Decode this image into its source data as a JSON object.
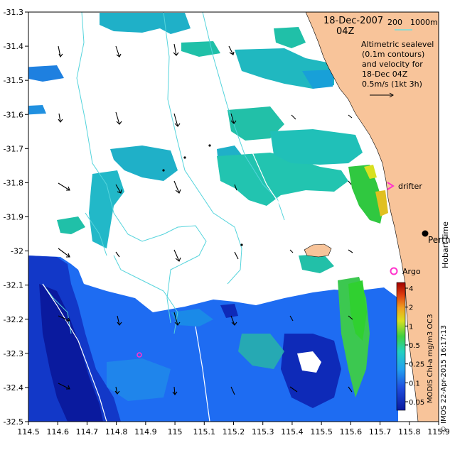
{
  "map": {
    "date": "18-Dec-2007",
    "time": "04Z",
    "bathymetry_legend": {
      "label_200": "200",
      "label_1000": "1000m",
      "line_color": "#6ee0e0"
    },
    "description_lines": [
      "Altimetric sealevel",
      "(0.1m contours)",
      "and velocity for",
      "18-Dec 04Z",
      "0.5m/s (1kt 3h)"
    ],
    "place_labels": {
      "perth": "Perth",
      "hobart_time": "Hobart time",
      "drifter": "drifter",
      "argo": "Argo"
    },
    "colorbar": {
      "title": "MODIS Chl-a mg/m3 OC3",
      "ticks": [
        "4",
        "2",
        "1",
        "0.5",
        "0.25",
        "0.1",
        "0.05"
      ]
    },
    "credit": "© IMOS 22-Apr-2015 16:17:13",
    "axes": {
      "x_ticks": [
        "114.5",
        "114.6",
        "114.7",
        "114.8",
        "114.9",
        "115",
        "115.1",
        "115.2",
        "115.3",
        "115.4",
        "115.5",
        "115.6",
        "115.7",
        "115.8",
        "115.9"
      ],
      "y_ticks": [
        "-31.3",
        "-31.4",
        "-31.5",
        "-31.6",
        "-31.7",
        "-31.8",
        "-31.9",
        "-32",
        "-32.1",
        "-32.2",
        "-32.3",
        "-32.4",
        "-32.5"
      ],
      "lon_range": [
        114.5,
        115.9
      ],
      "lat_range": [
        -32.5,
        -31.3
      ]
    },
    "colors": {
      "land": "#f8c49a",
      "contour": "#55d4dc",
      "marker": "#ff33cc",
      "deep_blue": "#0a1a9e",
      "mid_blue": "#1e6cf2",
      "cyan_green": "#20c8a8",
      "green": "#40c838"
    }
  }
}
